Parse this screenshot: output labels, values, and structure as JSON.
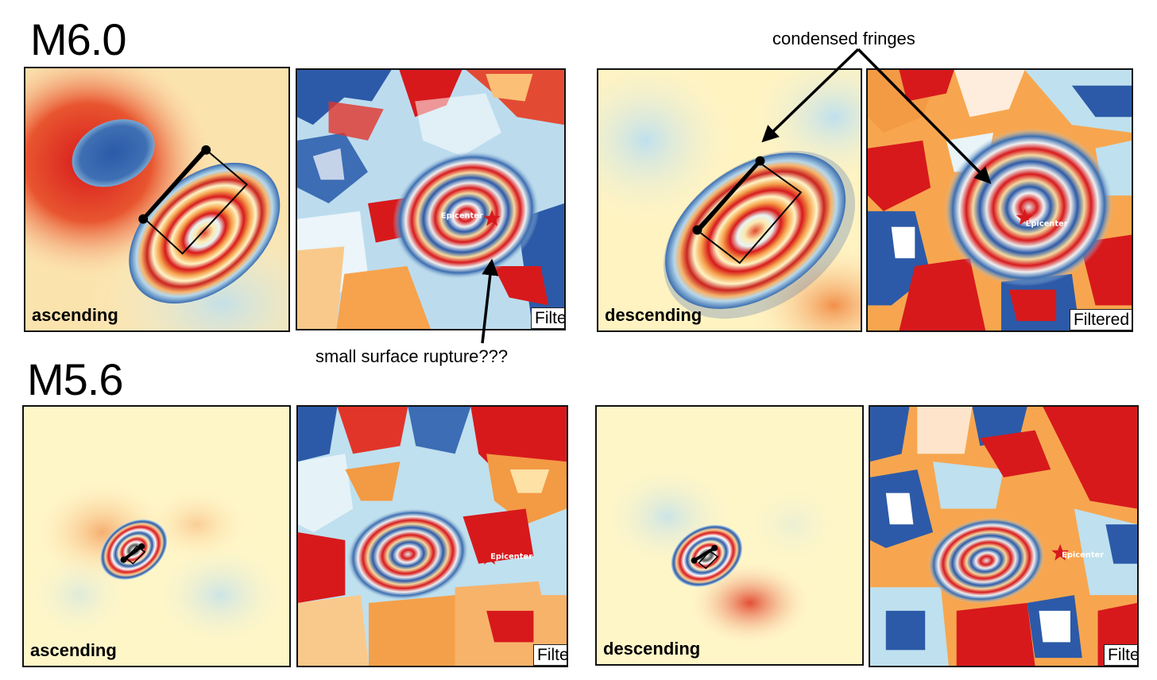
{
  "titles": {
    "top": "M6.0",
    "bottom": "M5.6"
  },
  "panels": {
    "top_asc_model": {
      "label": "ascending"
    },
    "top_asc_obs": {
      "tag": "Filtered",
      "epicenter": "Epicenter"
    },
    "top_desc_model": {
      "label": "descending"
    },
    "top_desc_obs": {
      "tag": "Filtered",
      "epicenter": "Epicenter"
    },
    "bot_asc_model": {
      "label": "ascending"
    },
    "bot_asc_obs": {
      "tag": "Filtered",
      "epicenter": "Epicenter"
    },
    "bot_desc_model": {
      "label": "descending"
    },
    "bot_desc_obs": {
      "tag": "Filtered",
      "epicenter": "Epicenter"
    }
  },
  "annotations": {
    "condensed": "condensed fringes",
    "rupture": "small surface rupture???"
  },
  "colors": {
    "red": "#d7191c",
    "orange": "#f59d42",
    "cream": "#fff6c8",
    "lightblue": "#bfe0ee",
    "blue": "#2c5aa8"
  }
}
